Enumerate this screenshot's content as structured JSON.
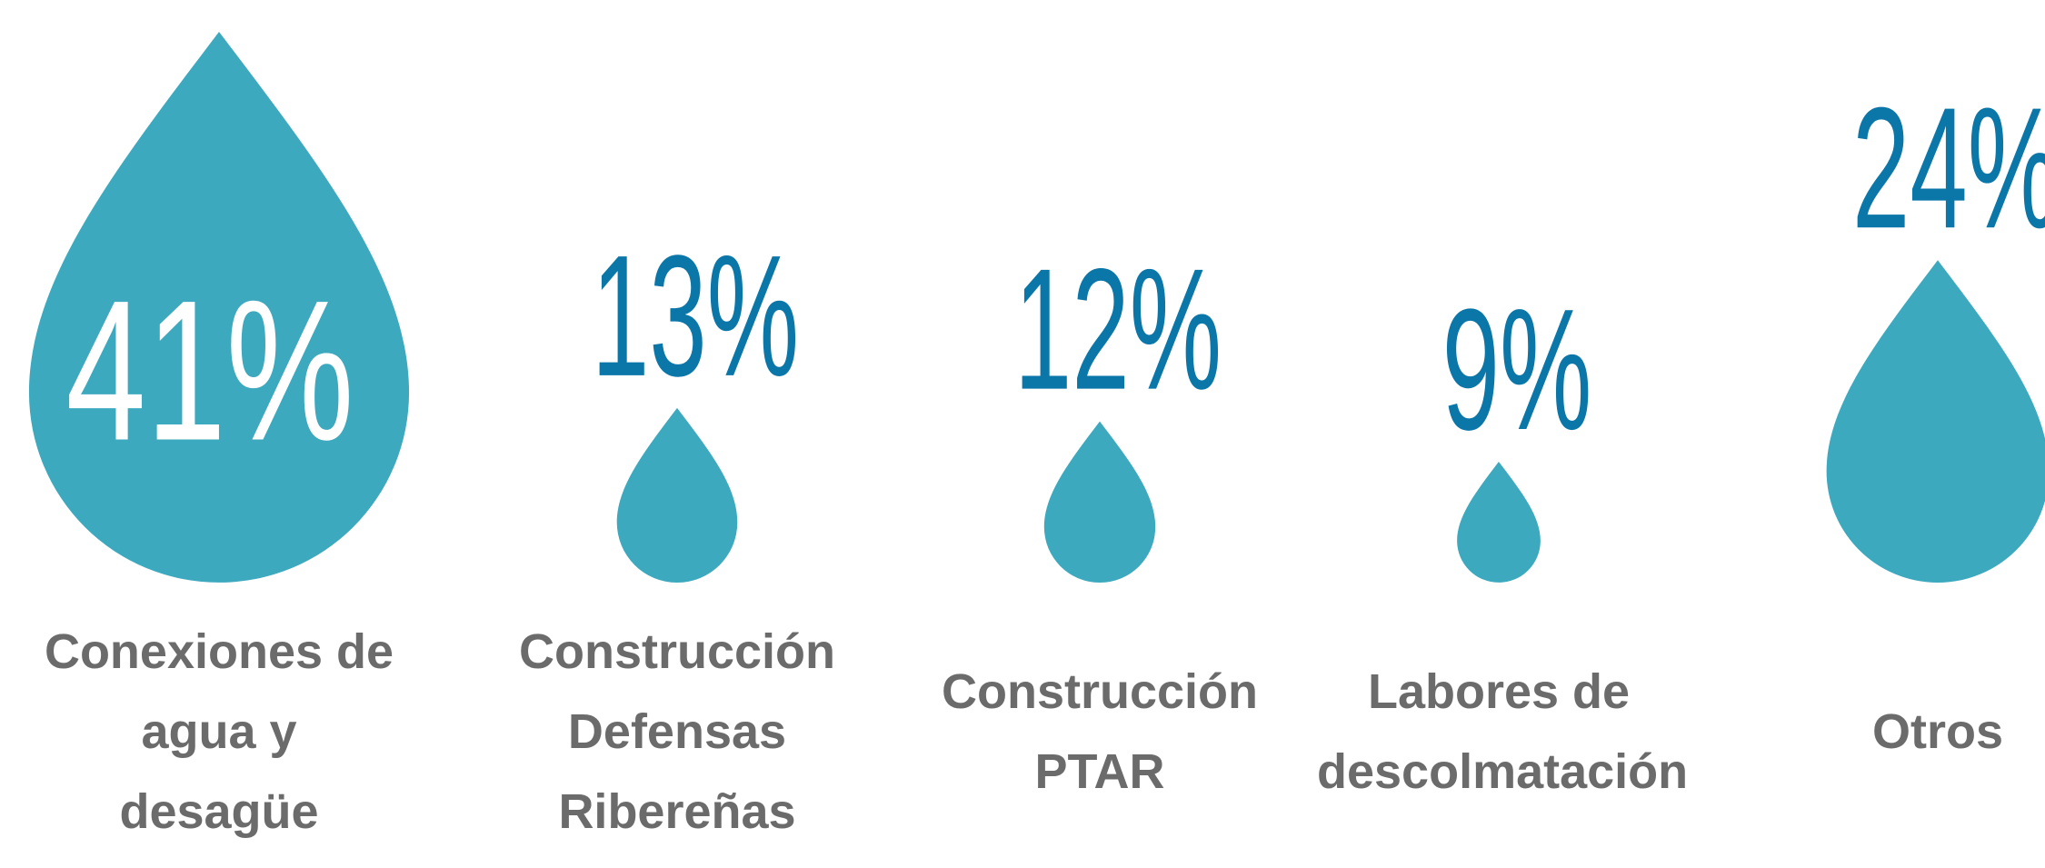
{
  "chart_data": {
    "type": "drop",
    "categories": [
      "Conexiones de agua y desagüe",
      "Construcción Defensas Ribereñas",
      "Construcción PTAR",
      "Labores de descolmatación",
      "Otros"
    ],
    "values": [
      41,
      13,
      12,
      9,
      24
    ],
    "value_labels": [
      "41%",
      "13%",
      "12%",
      "9%",
      "24%"
    ],
    "color": "#3da9be",
    "label_color": "#0b76a8"
  }
}
